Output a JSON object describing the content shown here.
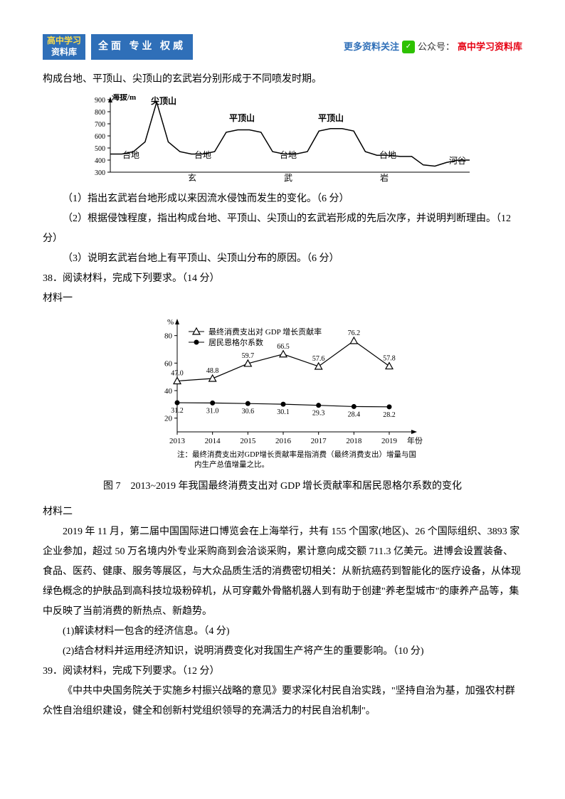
{
  "header": {
    "logo_top": "高中学习",
    "logo_bottom": "资料库",
    "motto": "全面 专业 权威",
    "more": "更多资料关注",
    "gzh": "公众号：",
    "lib": "高中学习资料库"
  },
  "body": {
    "p1": "构成台地、平顶山、尖顶山的玄武岩分别形成于不同喷发时期。",
    "q1": "（1）指出玄武岩台地形成以来因流水侵蚀而发生的变化。（6 分）",
    "q2": "（2）根据侵蚀程度，指出构成台地、平顶山、尖顶山的玄武岩形成的先后次序，并说明判断理由。（12 分）",
    "q3": "（3）说明玄武岩台地上有平顶山、尖顶山分布的原因。（6 分）",
    "q38": "38．阅读材料，完成下列要求。（14 分）",
    "mat1": "材料一",
    "fig7": "图 7　2013~2019 年我国最终消费支出对 GDP 增长贡献率和居民恩格尔系数的变化",
    "mat2": "材料二",
    "p2": "2019 年 11 月，第二届中国国际进口博览会在上海举行，共有 155 个国家(地区)、26 个国际组织、3893 家企业参加，超过 50 万名境内外专业采购商到会洽谈采购，累计意向成交额 711.3 亿美元。进博会设置装备、食品、医药、健康、服务等展区，与大众品质生活的消费密切相关：从新抗癌药到智能化的医疗设备，从体现绿色概念的护肤品到高科技垃圾粉碎机，从可穿戴外骨骼机器人到有助于创建\"养老型城市\"的康养产品等，集中反映了当前消费的新热点、新趋势。",
    "q38_1": "(1)解读材料一包含的经济信息。（4 分)",
    "q38_2": "(2)结合材料并运用经济知识，说明消费变化对我国生产将产生的重要影响。（10 分)",
    "q39": "39．阅读材料，完成下列要求。（12 分）",
    "p3": "《中共中央国务院关于实施乡村振兴战略的意见》要求深化村民自治实践，\"坚持自治为基，加强农村群众性自治组织建设，健全和创新村党组织领导的充满活力的村民自治机制\"。"
  },
  "chart1": {
    "type": "profile",
    "y_label": "海拔/m",
    "y_ticks": [
      300,
      400,
      500,
      600,
      700,
      800,
      900
    ],
    "labels": {
      "jian": "尖顶山",
      "ping": "平顶山",
      "tai": "台地",
      "he": "河谷",
      "xuan": "玄",
      "wu": "武",
      "yan": "岩"
    },
    "profile_y": [
      450,
      450,
      470,
      550,
      880,
      550,
      470,
      450,
      450,
      470,
      630,
      650,
      650,
      630,
      470,
      450,
      450,
      470,
      640,
      660,
      660,
      640,
      470,
      440,
      440,
      430,
      430,
      360,
      350,
      380,
      400,
      400
    ],
    "line_color": "#000",
    "fill": "none"
  },
  "chart2": {
    "type": "line",
    "legend": [
      "最终消费支出对 GDP 增长贡献率",
      "居民恩格尔系数"
    ],
    "x": [
      "2013",
      "2014",
      "2015",
      "2016",
      "2017",
      "2018",
      "2019"
    ],
    "x_label": "年份",
    "y_label": "%",
    "y_ticks": [
      20,
      40,
      60,
      80
    ],
    "series1": {
      "values": [
        47.0,
        48.8,
        59.7,
        66.5,
        57.6,
        76.2,
        57.8
      ],
      "color": "#000",
      "marker": "triangle"
    },
    "series2": {
      "values": [
        31.2,
        31.0,
        30.6,
        30.1,
        29.3,
        28.4,
        28.2
      ],
      "color": "#000",
      "marker": "circle"
    },
    "note": "注：最终消费支出对GDP增长贡献率是指消费（最终消费支出）增量与国内生产总值增量之比。",
    "font_size": 11,
    "axis_color": "#000"
  }
}
